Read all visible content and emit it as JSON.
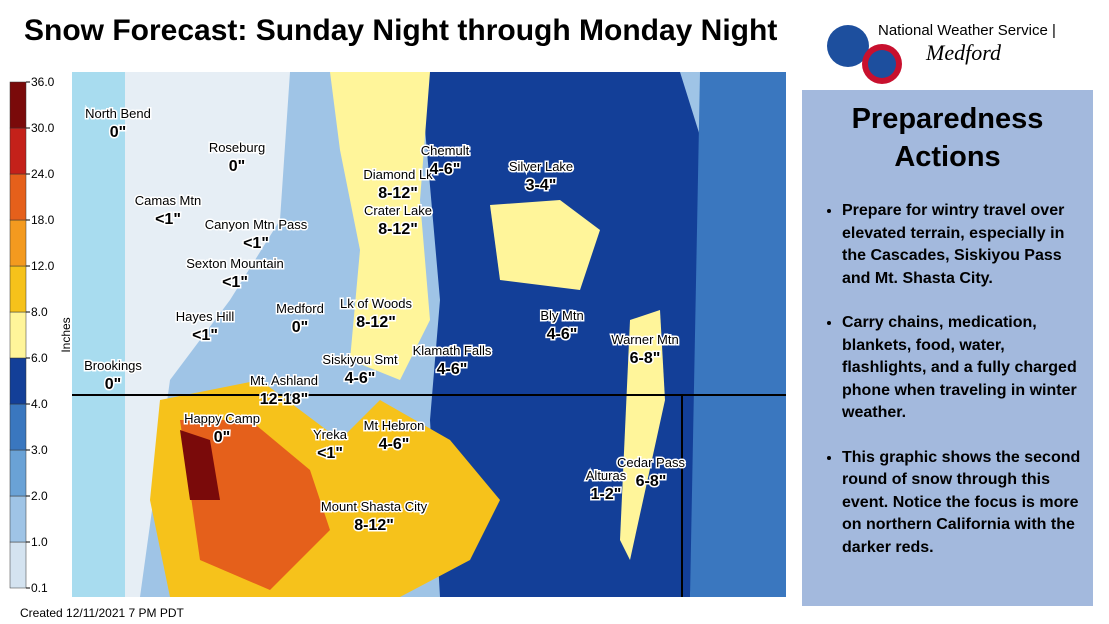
{
  "header": {
    "title": "Snow Forecast: Sunday Night through Monday Night",
    "agency": "National Weather Service |",
    "office": "Medford"
  },
  "legend": {
    "label": "Inches",
    "ticks": [
      0.1,
      {
        "value": 1,
        "label": "1.0"
      },
      {
        "value": 2,
        "label": "2.0"
      },
      {
        "value": 3,
        "label": "3.0"
      },
      {
        "value": 4,
        "label": "4.0"
      },
      {
        "value": 6,
        "label": "6.0"
      },
      {
        "value": 8,
        "label": "8.0"
      },
      {
        "value": 12,
        "label": "12.0"
      },
      {
        "value": 18,
        "label": "18.0"
      },
      {
        "value": 24,
        "label": "24.0"
      },
      {
        "value": 30,
        "label": "30.0"
      },
      {
        "value": 36,
        "label": "36.0"
      }
    ],
    "colors": [
      "#d4e3f0",
      "#9fc4e6",
      "#6aa2d6",
      "#3a77bf",
      "#133f98",
      "#fff59a",
      "#f6c21b",
      "#f39a1f",
      "#e5601b",
      "#c4211a",
      "#7a0a0a"
    ]
  },
  "locations": [
    {
      "name": "North Bend",
      "amount": "0\""
    },
    {
      "name": "Roseburg",
      "amount": "0\""
    },
    {
      "name": "Camas Mtn",
      "amount": "<1\""
    },
    {
      "name": "Canyon Mtn Pass",
      "amount": "<1\""
    },
    {
      "name": "Sexton Mountain",
      "amount": "<1\""
    },
    {
      "name": "Hayes Hill",
      "amount": "<1\""
    },
    {
      "name": "Brookings",
      "amount": "0\""
    },
    {
      "name": "Medford",
      "amount": "0\""
    },
    {
      "name": "Mt. Ashland",
      "amount": "12-18\""
    },
    {
      "name": "Happy Camp",
      "amount": "0\""
    },
    {
      "name": "Yreka",
      "amount": "<1\""
    },
    {
      "name": "Mount Shasta City",
      "amount": "8-12\""
    },
    {
      "name": "Mt Hebron",
      "amount": "4-6\""
    },
    {
      "name": "Siskiyou Smt",
      "amount": "4-6\""
    },
    {
      "name": "Klamath Falls",
      "amount": "4-6\""
    },
    {
      "name": "Lk of Woods",
      "amount": "8-12\""
    },
    {
      "name": "Crater Lake",
      "amount": "8-12\""
    },
    {
      "name": "Diamond Lk",
      "amount": "8-12\""
    },
    {
      "name": "Chemult",
      "amount": "4-6\""
    },
    {
      "name": "Silver Lake",
      "amount": "3-4\""
    },
    {
      "name": "Bly Mtn",
      "amount": "4-6\""
    },
    {
      "name": "Warner Mtn",
      "amount": "6-8\""
    },
    {
      "name": "Cedar Pass",
      "amount": "6-8\""
    },
    {
      "name": "Alturas",
      "amount": "1-2\""
    }
  ],
  "panel": {
    "title": "Preparedness Actions",
    "bullets": [
      "Prepare for wintry travel over elevated terrain, especially in the Cascades, Siskiyou Pass and Mt. Shasta City.",
      "Carry chains, medication, blankets, food, water, flashlights, and a fully charged phone when traveling in winter weather.",
      "This graphic shows the second round of snow through this event.   Notice the focus is more on northern California with the darker reds."
    ]
  },
  "footer": "Created 12/11/2021  7 PM PDT"
}
